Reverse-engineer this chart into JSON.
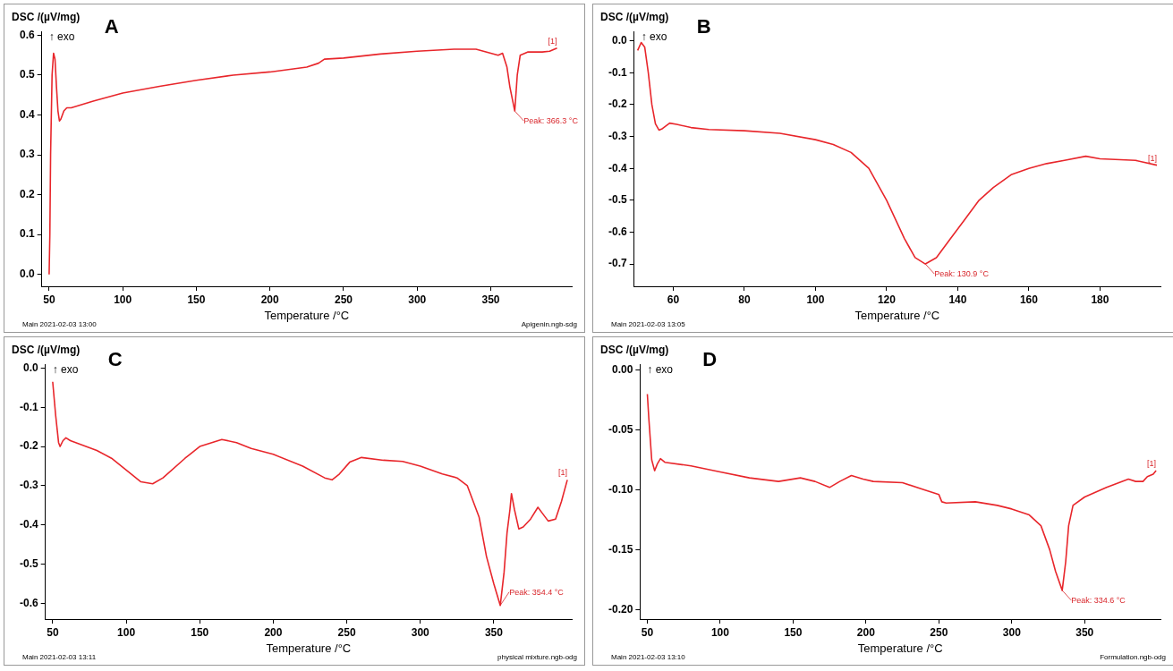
{
  "chart_data": [
    {
      "type": "line",
      "title": "A",
      "ylabel": "DSC /(µV/mg)",
      "xlabel": "Temperature /°C",
      "grid": false,
      "marker": "none",
      "line_style": "solid",
      "xlim": [
        45,
        405
      ],
      "ylim": [
        -0.03,
        0.61
      ],
      "xticks": [
        50,
        100,
        150,
        200,
        250,
        300,
        350
      ],
      "yticks": [
        {
          "value": 0,
          "label": "0.0"
        },
        0.1,
        0.2,
        0.3,
        0.4,
        0.5,
        0.6
      ],
      "x": [
        50,
        50.5,
        51,
        52,
        53,
        54,
        55,
        56,
        57,
        58,
        60,
        62,
        65,
        80,
        100,
        125,
        150,
        175,
        200,
        225,
        233,
        237,
        250,
        275,
        300,
        325,
        340,
        350,
        355,
        358,
        361,
        363,
        366.3,
        368,
        370,
        375,
        385,
        390,
        395
      ],
      "series": [
        {
          "color": "#e8262b",
          "values": [
            0.0,
            0.1,
            0.3,
            0.5,
            0.555,
            0.54,
            0.47,
            0.41,
            0.385,
            0.39,
            0.41,
            0.418,
            0.418,
            0.435,
            0.455,
            0.472,
            0.487,
            0.5,
            0.508,
            0.52,
            0.53,
            0.54,
            0.543,
            0.553,
            0.56,
            0.565,
            0.565,
            0.555,
            0.55,
            0.555,
            0.52,
            0.47,
            0.41,
            0.5,
            0.55,
            0.558,
            0.558,
            0.56,
            0.568
          ]
        }
      ],
      "annotations": [
        "↑ exo",
        "Main 2021-02-03 13:00",
        "Apigenin.ngb-sdg",
        {
          "text": "Peak: 366.3 °C",
          "x": 366.3,
          "y": 0.41
        },
        {
          "text": "[1]",
          "x": 395,
          "y": 0.568
        }
      ]
    },
    {
      "type": "line",
      "title": "B",
      "ylabel": "DSC /(µV/mg)",
      "xlabel": "Temperature /°C",
      "grid": false,
      "marker": "none",
      "line_style": "solid",
      "xlim": [
        49,
        197
      ],
      "ylim": [
        -0.77,
        0.03
      ],
      "xticks": [
        60,
        80,
        100,
        120,
        140,
        160,
        180
      ],
      "yticks": [
        {
          "value": 0,
          "label": "0.0"
        },
        -0.1,
        -0.2,
        -0.3,
        -0.4,
        -0.5,
        -0.6,
        -0.7
      ],
      "x": [
        50,
        51,
        52,
        53,
        54,
        55,
        56,
        57,
        59,
        61,
        65,
        70,
        80,
        90,
        100,
        105,
        110,
        115,
        120,
        125,
        128,
        130.9,
        134,
        138,
        142,
        146,
        150,
        155,
        160,
        165,
        170,
        176,
        180,
        190,
        196
      ],
      "series": [
        {
          "color": "#e8262b",
          "values": [
            -0.03,
            -0.005,
            -0.02,
            -0.1,
            -0.2,
            -0.26,
            -0.28,
            -0.275,
            -0.258,
            -0.262,
            -0.272,
            -0.278,
            -0.282,
            -0.29,
            -0.31,
            -0.325,
            -0.35,
            -0.4,
            -0.5,
            -0.62,
            -0.68,
            -0.7,
            -0.68,
            -0.62,
            -0.56,
            -0.5,
            -0.46,
            -0.42,
            -0.4,
            -0.385,
            -0.375,
            -0.362,
            -0.37,
            -0.375,
            -0.39
          ]
        }
      ],
      "annotations": [
        "↑ exo",
        "Main 2021-02-03 13:05",
        {
          "text": "Peak: 130.9 °C",
          "x": 130.9,
          "y": -0.7
        },
        {
          "text": "[1]",
          "x": 196,
          "y": -0.39
        }
      ]
    },
    {
      "type": "line",
      "title": "C",
      "ylabel": "DSC /(µV/mg)",
      "xlabel": "Temperature /°C",
      "grid": false,
      "marker": "none",
      "line_style": "solid",
      "xlim": [
        45,
        403
      ],
      "ylim": [
        -0.64,
        0.01
      ],
      "xticks": [
        50,
        100,
        150,
        200,
        250,
        300,
        350
      ],
      "yticks": [
        {
          "value": 0,
          "label": "0.0"
        },
        -0.1,
        -0.2,
        -0.3,
        -0.4,
        -0.5,
        -0.6
      ],
      "x": [
        50,
        52,
        54,
        55,
        57,
        59,
        62,
        80,
        90,
        100,
        110,
        118,
        125,
        140,
        150,
        165,
        175,
        185,
        200,
        220,
        235,
        240,
        245,
        252,
        260,
        275,
        288,
        300,
        315,
        325,
        332,
        340,
        345,
        350,
        354.4,
        357,
        359,
        361,
        362,
        364,
        367,
        370,
        375,
        380,
        383,
        387,
        392,
        396,
        400
      ],
      "series": [
        {
          "color": "#e8262b",
          "values": [
            -0.035,
            -0.12,
            -0.19,
            -0.2,
            -0.185,
            -0.178,
            -0.185,
            -0.21,
            -0.23,
            -0.26,
            -0.29,
            -0.295,
            -0.28,
            -0.23,
            -0.2,
            -0.182,
            -0.19,
            -0.205,
            -0.22,
            -0.25,
            -0.28,
            -0.285,
            -0.27,
            -0.24,
            -0.228,
            -0.235,
            -0.238,
            -0.25,
            -0.27,
            -0.28,
            -0.3,
            -0.38,
            -0.48,
            -0.55,
            -0.605,
            -0.52,
            -0.42,
            -0.36,
            -0.32,
            -0.36,
            -0.41,
            -0.405,
            -0.385,
            -0.355,
            -0.37,
            -0.39,
            -0.385,
            -0.34,
            -0.285
          ]
        }
      ],
      "annotations": [
        "↑ exo",
        "Main 2021-02-03 13:11",
        "physical mixture.ngb-odg",
        {
          "text": "Peak: 354.4 °C",
          "x": 354.4,
          "y": -0.605
        },
        {
          "text": "[1]",
          "x": 400,
          "y": -0.285
        }
      ]
    },
    {
      "type": "line",
      "title": "D",
      "ylabel": "DSC /(µV/mg)",
      "xlabel": "Temperature /°C",
      "grid": false,
      "marker": "none",
      "line_style": "solid",
      "xlim": [
        45,
        402
      ],
      "ylim": [
        -0.208,
        0.005
      ],
      "xticks": [
        50,
        100,
        150,
        200,
        250,
        300,
        350
      ],
      "yticks": [
        {
          "value": 0,
          "label": "0.00"
        },
        {
          "value": -0.05,
          "label": "-0.05"
        },
        {
          "value": -0.1,
          "label": "-0.10"
        },
        {
          "value": -0.15,
          "label": "-0.15"
        },
        {
          "value": -0.2,
          "label": "-0.20"
        }
      ],
      "x": [
        50,
        51,
        53,
        55,
        57,
        59,
        62,
        80,
        100,
        120,
        140,
        155,
        165,
        175,
        182,
        190,
        198,
        205,
        225,
        240,
        250,
        252,
        255,
        275,
        290,
        300,
        312,
        320,
        326,
        330,
        334.6,
        337,
        339,
        342,
        350,
        365,
        380,
        385,
        390,
        393,
        397,
        399
      ],
      "series": [
        {
          "color": "#e8262b",
          "values": [
            -0.02,
            -0.04,
            -0.075,
            -0.084,
            -0.078,
            -0.074,
            -0.077,
            -0.08,
            -0.085,
            -0.09,
            -0.093,
            -0.09,
            -0.093,
            -0.098,
            -0.093,
            -0.088,
            -0.091,
            -0.093,
            -0.094,
            -0.1,
            -0.104,
            -0.11,
            -0.111,
            -0.11,
            -0.113,
            -0.116,
            -0.121,
            -0.13,
            -0.15,
            -0.168,
            -0.184,
            -0.16,
            -0.13,
            -0.113,
            -0.106,
            -0.098,
            -0.091,
            -0.093,
            -0.093,
            -0.089,
            -0.087,
            -0.084
          ]
        }
      ],
      "annotations": [
        "↑ exo",
        "Main 2021-02-03 13:10",
        "Formulation.ngb-odg",
        {
          "text": "Peak: 334.6 °C",
          "x": 334.6,
          "y": -0.184
        },
        {
          "text": "[1]",
          "x": 399,
          "y": -0.084
        }
      ]
    }
  ]
}
